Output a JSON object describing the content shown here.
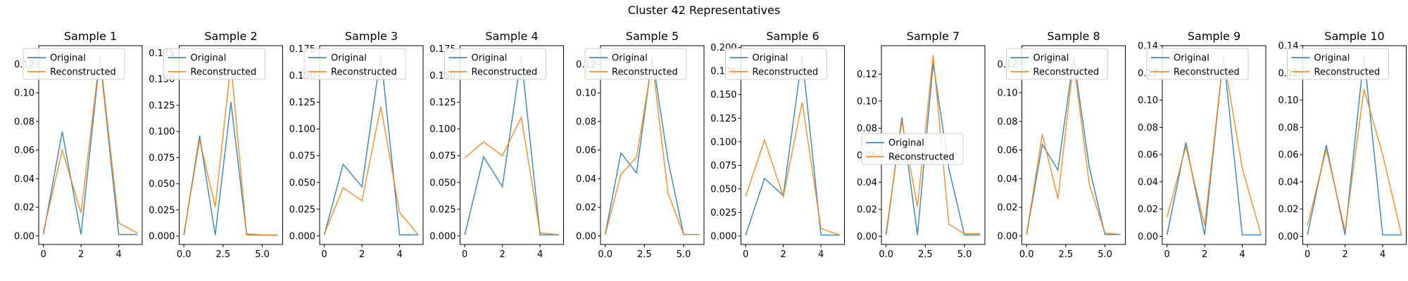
{
  "figure": {
    "suptitle": "Cluster 42 Representatives"
  },
  "colors": {
    "original": "#1f77b4",
    "reconstructed": "#ff7f0e"
  },
  "legend_labels": [
    "Original",
    "Reconstructed"
  ],
  "chart_data": [
    {
      "type": "line",
      "title": "Sample 1",
      "xlim": [
        -0.25,
        5.25
      ],
      "ylim": [
        -0.006,
        0.133
      ],
      "xticks": [
        0,
        2,
        4
      ],
      "xtick_labels": [
        "0",
        "2",
        "4"
      ],
      "yticks": [
        0,
        0.02,
        0.04,
        0.06,
        0.08,
        0.1,
        0.12
      ],
      "ytick_labels": [
        "0.00",
        "0.02",
        "0.04",
        "0.06",
        "0.08",
        "0.10",
        "0.12"
      ],
      "legend": "upper-left",
      "series": [
        {
          "name": "Original",
          "x": [
            0,
            1,
            2,
            3,
            4,
            5
          ],
          "values": [
            0.001,
            0.073,
            0.001,
            0.125,
            0.001,
            0.001
          ]
        },
        {
          "name": "Reconstructed",
          "x": [
            0,
            1,
            2,
            3,
            4,
            5
          ],
          "values": [
            0.003,
            0.06,
            0.016,
            0.126,
            0.009,
            0.002
          ]
        }
      ]
    },
    {
      "type": "line",
      "title": "Sample 2",
      "xlim": [
        -0.3,
        6.3
      ],
      "ylim": [
        -0.008,
        0.182
      ],
      "xticks": [
        0,
        2.5,
        5
      ],
      "xtick_labels": [
        "0.0",
        "2.5",
        "5.0"
      ],
      "yticks": [
        0,
        0.025,
        0.05,
        0.075,
        0.1,
        0.125,
        0.15,
        0.175
      ],
      "ytick_labels": [
        "0.000",
        "0.025",
        "0.050",
        "0.075",
        "0.100",
        "0.125",
        "0.150",
        "0.175"
      ],
      "legend": "upper-left",
      "series": [
        {
          "name": "Original",
          "x": [
            0,
            1,
            2,
            3,
            4,
            5,
            6
          ],
          "values": [
            0.001,
            0.096,
            0.001,
            0.128,
            0.002,
            0.001,
            0.001
          ]
        },
        {
          "name": "Reconstructed",
          "x": [
            0,
            1,
            2,
            3,
            4,
            5,
            6
          ],
          "values": [
            0.002,
            0.092,
            0.028,
            0.165,
            0.001,
            0.001,
            0.001
          ]
        }
      ]
    },
    {
      "type": "line",
      "title": "Sample 3",
      "xlim": [
        -0.25,
        5.25
      ],
      "ylim": [
        -0.008,
        0.178
      ],
      "xticks": [
        0,
        2,
        4
      ],
      "xtick_labels": [
        "0",
        "2",
        "4"
      ],
      "yticks": [
        0,
        0.025,
        0.05,
        0.075,
        0.1,
        0.125,
        0.15,
        0.175
      ],
      "ytick_labels": [
        "0.000",
        "0.025",
        "0.050",
        "0.075",
        "0.100",
        "0.125",
        "0.150",
        "0.175"
      ],
      "legend": "upper-left",
      "series": [
        {
          "name": "Original",
          "x": [
            0,
            1,
            2,
            3,
            4,
            5
          ],
          "values": [
            0.001,
            0.067,
            0.046,
            0.17,
            0.001,
            0.001
          ]
        },
        {
          "name": "Reconstructed",
          "x": [
            0,
            1,
            2,
            3,
            4,
            5
          ],
          "values": [
            0.002,
            0.045,
            0.033,
            0.121,
            0.022,
            0.001
          ]
        }
      ]
    },
    {
      "type": "line",
      "title": "Sample 4",
      "xlim": [
        -0.25,
        5.25
      ],
      "ylim": [
        -0.008,
        0.178
      ],
      "xticks": [
        0,
        2,
        4
      ],
      "xtick_labels": [
        "0",
        "2",
        "4"
      ],
      "yticks": [
        0,
        0.025,
        0.05,
        0.075,
        0.1,
        0.125,
        0.15,
        0.175
      ],
      "ytick_labels": [
        "0.000",
        "0.025",
        "0.050",
        "0.075",
        "0.100",
        "0.125",
        "0.150",
        "0.175"
      ],
      "legend": "upper-left",
      "series": [
        {
          "name": "Original",
          "x": [
            0,
            1,
            2,
            3,
            4,
            5
          ],
          "values": [
            0.001,
            0.074,
            0.046,
            0.168,
            0.001,
            0.001
          ]
        },
        {
          "name": "Reconstructed",
          "x": [
            0,
            1,
            2,
            3,
            4,
            5
          ],
          "values": [
            0.073,
            0.088,
            0.075,
            0.111,
            0.003,
            0.001
          ]
        }
      ]
    },
    {
      "type": "line",
      "title": "Sample 5",
      "xlim": [
        -0.3,
        6.3
      ],
      "ylim": [
        -0.006,
        0.133
      ],
      "xticks": [
        0,
        2.5,
        5
      ],
      "xtick_labels": [
        "0.0",
        "2.5",
        "5.0"
      ],
      "yticks": [
        0,
        0.02,
        0.04,
        0.06,
        0.08,
        0.1,
        0.12
      ],
      "ytick_labels": [
        "0.00",
        "0.02",
        "0.04",
        "0.06",
        "0.08",
        "0.10",
        "0.12"
      ],
      "legend": "upper-left",
      "series": [
        {
          "name": "Original",
          "x": [
            0,
            1,
            2,
            3,
            4,
            5,
            6
          ],
          "values": [
            0.001,
            0.058,
            0.044,
            0.125,
            0.053,
            0.001,
            0.001
          ]
        },
        {
          "name": "Reconstructed",
          "x": [
            0,
            1,
            2,
            3,
            4,
            5,
            6
          ],
          "values": [
            0.001,
            0.043,
            0.055,
            0.122,
            0.03,
            0.001,
            0.001
          ]
        }
      ]
    },
    {
      "type": "line",
      "title": "Sample 6",
      "xlim": [
        -0.25,
        5.25
      ],
      "ylim": [
        -0.009,
        0.202
      ],
      "xticks": [
        0,
        2,
        4
      ],
      "xtick_labels": [
        "0",
        "2",
        "4"
      ],
      "yticks": [
        0,
        0.025,
        0.05,
        0.075,
        0.1,
        0.125,
        0.15,
        0.175,
        0.2
      ],
      "ytick_labels": [
        "0.000",
        "0.025",
        "0.050",
        "0.075",
        "0.100",
        "0.125",
        "0.150",
        "0.175",
        "0.200"
      ],
      "legend": "upper-left",
      "series": [
        {
          "name": "Original",
          "x": [
            0,
            1,
            2,
            3,
            4,
            5
          ],
          "values": [
            0.001,
            0.061,
            0.043,
            0.191,
            0.001,
            0.001
          ]
        },
        {
          "name": "Reconstructed",
          "x": [
            0,
            1,
            2,
            3,
            4,
            5
          ],
          "values": [
            0.042,
            0.102,
            0.042,
            0.142,
            0.008,
            0.001
          ]
        }
      ]
    },
    {
      "type": "line",
      "title": "Sample 7",
      "xlim": [
        -0.3,
        6.3
      ],
      "ylim": [
        -0.006,
        0.141
      ],
      "xticks": [
        0,
        2.5,
        5
      ],
      "xtick_labels": [
        "0.0",
        "2.5",
        "5.0"
      ],
      "yticks": [
        0,
        0.02,
        0.04,
        0.06,
        0.08,
        0.1,
        0.12
      ],
      "ytick_labels": [
        "0.00",
        "0.02",
        "0.04",
        "0.06",
        "0.08",
        "0.10",
        "0.12"
      ],
      "legend": "center-left",
      "series": [
        {
          "name": "Original",
          "x": [
            0,
            1,
            2,
            3,
            4,
            5,
            6
          ],
          "values": [
            0.001,
            0.088,
            0.001,
            0.128,
            0.05,
            0.001,
            0.001
          ]
        },
        {
          "name": "Reconstructed",
          "x": [
            0,
            1,
            2,
            3,
            4,
            5,
            6
          ],
          "values": [
            0.003,
            0.085,
            0.022,
            0.134,
            0.009,
            0.002,
            0.002
          ]
        }
      ]
    },
    {
      "type": "line",
      "title": "Sample 8",
      "xlim": [
        -0.3,
        6.3
      ],
      "ylim": [
        -0.006,
        0.133
      ],
      "xticks": [
        0,
        2.5,
        5
      ],
      "xtick_labels": [
        "0.0",
        "2.5",
        "5.0"
      ],
      "yticks": [
        0,
        0.02,
        0.04,
        0.06,
        0.08,
        0.1,
        0.12
      ],
      "ytick_labels": [
        "0.00",
        "0.02",
        "0.04",
        "0.06",
        "0.08",
        "0.10",
        "0.12"
      ],
      "legend": "upper-left",
      "series": [
        {
          "name": "Original",
          "x": [
            0,
            1,
            2,
            3,
            4,
            5,
            6
          ],
          "values": [
            0.001,
            0.064,
            0.046,
            0.125,
            0.048,
            0.001,
            0.001
          ]
        },
        {
          "name": "Reconstructed",
          "x": [
            0,
            1,
            2,
            3,
            4,
            5,
            6
          ],
          "values": [
            0.001,
            0.071,
            0.026,
            0.122,
            0.036,
            0.002,
            0.001
          ]
        }
      ]
    },
    {
      "type": "line",
      "title": "Sample 9",
      "xlim": [
        -0.25,
        5.25
      ],
      "ylim": [
        -0.006,
        0.14
      ],
      "xticks": [
        0,
        2,
        4
      ],
      "xtick_labels": [
        "0",
        "2",
        "4"
      ],
      "yticks": [
        0,
        0.02,
        0.04,
        0.06,
        0.08,
        0.1,
        0.12,
        0.14
      ],
      "ytick_labels": [
        "0.00",
        "0.02",
        "0.04",
        "0.06",
        "0.08",
        "0.10",
        "0.12",
        "0.14"
      ],
      "legend": "upper-left",
      "series": [
        {
          "name": "Original",
          "x": [
            0,
            1,
            2,
            3,
            4,
            5
          ],
          "values": [
            0.001,
            0.069,
            0.001,
            0.133,
            0.001,
            0.001
          ]
        },
        {
          "name": "Reconstructed",
          "x": [
            0,
            1,
            2,
            3,
            4,
            5
          ],
          "values": [
            0.014,
            0.066,
            0.008,
            0.132,
            0.05,
            0.001
          ]
        }
      ]
    },
    {
      "type": "line",
      "title": "Sample 10",
      "xlim": [
        -0.25,
        5.25
      ],
      "ylim": [
        -0.006,
        0.14
      ],
      "xticks": [
        0,
        2,
        4
      ],
      "xtick_labels": [
        "0",
        "2",
        "4"
      ],
      "yticks": [
        0,
        0.02,
        0.04,
        0.06,
        0.08,
        0.1,
        0.12,
        0.14
      ],
      "ytick_labels": [
        "0.00",
        "0.02",
        "0.04",
        "0.06",
        "0.08",
        "0.10",
        "0.12",
        "0.14"
      ],
      "legend": "upper-left",
      "series": [
        {
          "name": "Original",
          "x": [
            0,
            1,
            2,
            3,
            4,
            5
          ],
          "values": [
            0.001,
            0.067,
            0.001,
            0.133,
            0.001,
            0.001
          ]
        },
        {
          "name": "Reconstructed",
          "x": [
            0,
            1,
            2,
            3,
            4,
            5
          ],
          "values": [
            0.008,
            0.064,
            0.004,
            0.108,
            0.06,
            0.001
          ]
        }
      ]
    }
  ]
}
